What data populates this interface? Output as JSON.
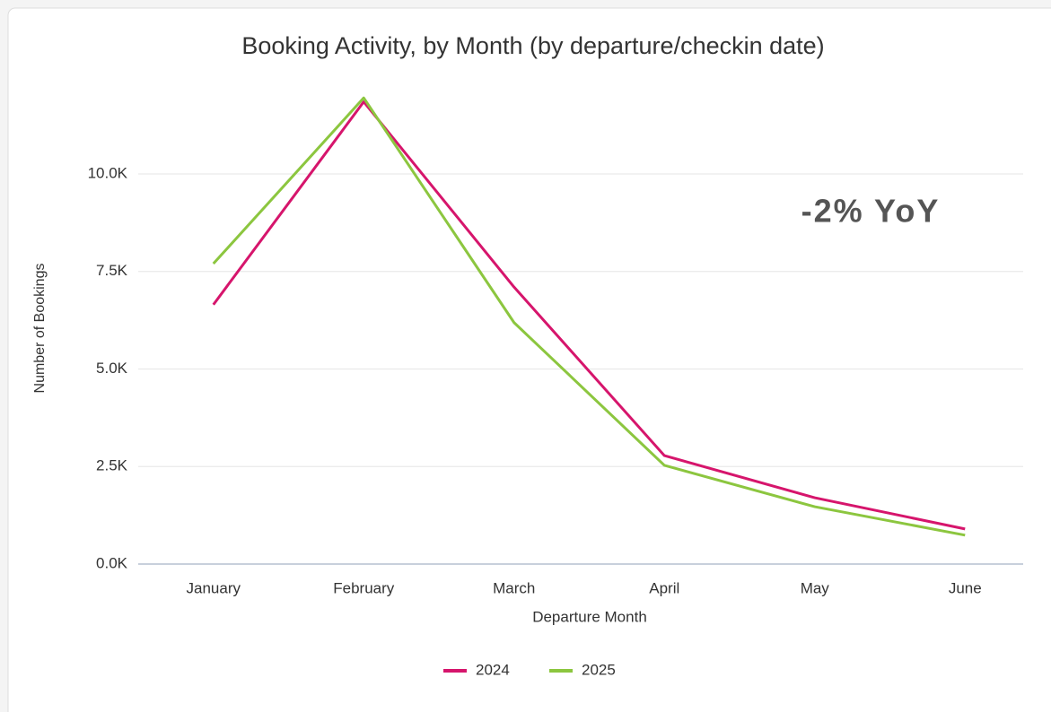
{
  "chart_data": {
    "type": "line",
    "title": "Booking Activity, by Month (by departure/checkin date)",
    "x_label": "Departure Month",
    "y_label": "Number of Bookings",
    "annotation": "-2% YoY",
    "categories": [
      "January",
      "February",
      "March",
      "April",
      "May",
      "June"
    ],
    "series": [
      {
        "name": "2024",
        "color": "#d6156c",
        "values": [
          6650,
          11850,
          7100,
          2780,
          1700,
          900
        ]
      },
      {
        "name": "2025",
        "color": "#8cc63f",
        "values": [
          7700,
          11950,
          6190,
          2530,
          1470,
          740
        ]
      }
    ],
    "ylim": [
      0,
      12000
    ],
    "yticks": [
      {
        "value": 0,
        "label": "0.0K"
      },
      {
        "value": 2500,
        "label": "2.5K"
      },
      {
        "value": 5000,
        "label": "5.0K"
      },
      {
        "value": 7500,
        "label": "7.5K"
      },
      {
        "value": 10000,
        "label": "10.0K"
      }
    ],
    "grid": true,
    "legend": "bottom"
  }
}
